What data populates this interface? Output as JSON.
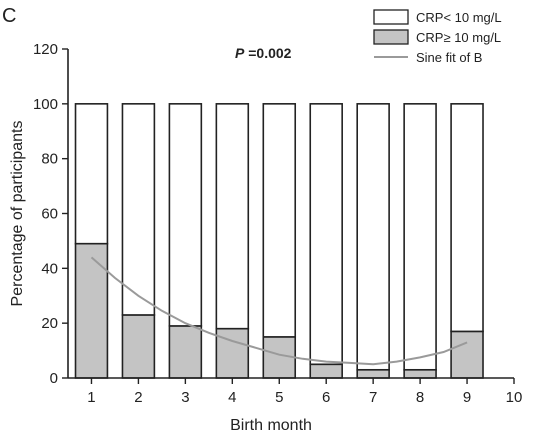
{
  "figure": {
    "panel_label": "C",
    "p_prefix": "P",
    "p_value": " =0.002"
  },
  "chart_data": {
    "type": "bar",
    "stacked": true,
    "categories": [
      1,
      2,
      3,
      4,
      5,
      6,
      7,
      8,
      9
    ],
    "series": [
      {
        "name": "CRP≥ 10 mg/L",
        "color": "#c4c4c4",
        "values": [
          49,
          23,
          19,
          18,
          15,
          5,
          3,
          3,
          17
        ]
      },
      {
        "name": "CRP< 10 mg/L",
        "color": "#ffffff",
        "values": [
          51,
          77,
          81,
          82,
          85,
          95,
          97,
          97,
          83
        ]
      }
    ],
    "fit_line": {
      "name": "Sine fit of B",
      "color": "#9a9a9a",
      "x": [
        1,
        1.5,
        2,
        2.5,
        3,
        3.5,
        4,
        4.5,
        5,
        5.5,
        6,
        6.5,
        7,
        7.5,
        8,
        8.5,
        9
      ],
      "y": [
        44,
        36.5,
        30,
        24.5,
        20,
        16.5,
        13.5,
        11,
        8.5,
        7,
        6,
        5.5,
        5,
        6,
        7.5,
        9.5,
        13
      ]
    },
    "xlabel": "Birth month",
    "ylabel": "Percentage of participants",
    "xlim": [
      0.5,
      10
    ],
    "ylim": [
      0,
      120
    ],
    "xticks": [
      1,
      2,
      3,
      4,
      5,
      6,
      7,
      8,
      9,
      10
    ],
    "yticks": [
      0,
      20,
      40,
      60,
      80,
      100,
      120
    ],
    "legend_position": "top-right",
    "legend": [
      {
        "label": "CRP< 10 mg/L",
        "kind": "box",
        "color": "#ffffff"
      },
      {
        "label": "CRP≥ 10 mg/L",
        "kind": "box",
        "color": "#c4c4c4"
      },
      {
        "label": "Sine fit of B",
        "kind": "line",
        "color": "#9a9a9a"
      }
    ]
  }
}
